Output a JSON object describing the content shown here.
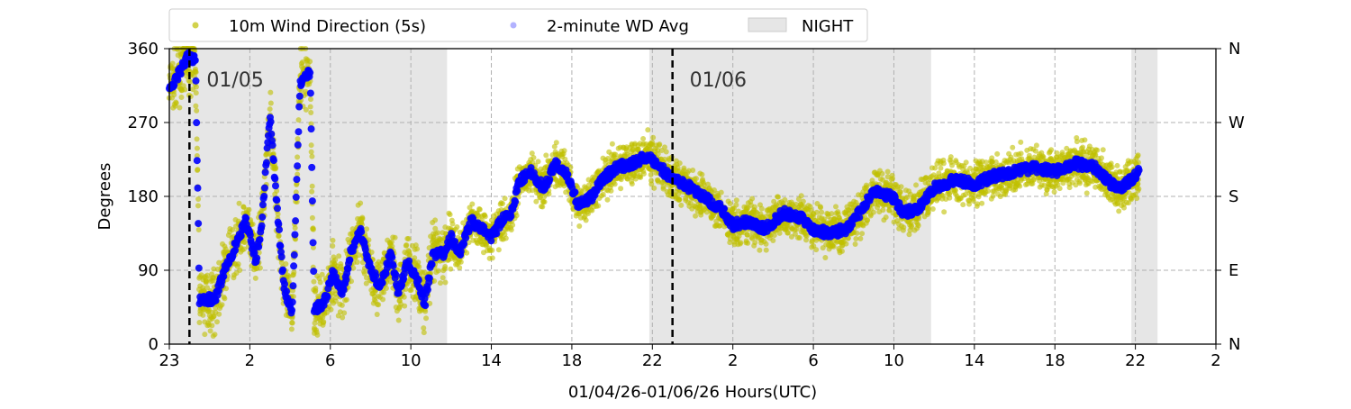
{
  "chart_data": {
    "type": "scatter",
    "xlabel": "01/04/26-01/06/26  Hours(UTC)",
    "ylabel": "Degrees",
    "x_unit": "hours since first tick",
    "xlim": [
      0,
      52
    ],
    "ylim": [
      0,
      360
    ],
    "x_ticks": [
      {
        "h": 0,
        "label": "23"
      },
      {
        "h": 4,
        "label": "2"
      },
      {
        "h": 8,
        "label": "6"
      },
      {
        "h": 12,
        "label": "10"
      },
      {
        "h": 16,
        "label": "14"
      },
      {
        "h": 20,
        "label": "18"
      },
      {
        "h": 24,
        "label": "22"
      },
      {
        "h": 28,
        "label": "2"
      },
      {
        "h": 32,
        "label": "6"
      },
      {
        "h": 36,
        "label": "10"
      },
      {
        "h": 40,
        "label": "14"
      },
      {
        "h": 44,
        "label": "18"
      },
      {
        "h": 48,
        "label": "22"
      },
      {
        "h": 52,
        "label": "2"
      }
    ],
    "y_ticks": [
      {
        "v": 0,
        "label": "0"
      },
      {
        "v": 90,
        "label": "90"
      },
      {
        "v": 180,
        "label": "180"
      },
      {
        "v": 270,
        "label": "270"
      },
      {
        "v": 360,
        "label": "360"
      }
    ],
    "y2_ticks": [
      {
        "v": 0,
        "label": "N"
      },
      {
        "v": 90,
        "label": "E"
      },
      {
        "v": 180,
        "label": "S"
      },
      {
        "v": 270,
        "label": "W"
      },
      {
        "v": 360,
        "label": "N"
      }
    ],
    "grid": true,
    "legend_position": "top-center",
    "legend": [
      {
        "label": "10m Wind Direction (5s)",
        "color": "#bfbf00"
      },
      {
        "label": "2-minute WD Avg",
        "color": "#0000ff"
      },
      {
        "label": "NIGHT",
        "color": "#e6e6e6"
      }
    ],
    "night_periods": [
      [
        0,
        13.8
      ],
      [
        23.85,
        37.85
      ],
      [
        47.8,
        49.1
      ]
    ],
    "day_markers": [
      {
        "h": 1,
        "label": "01/05"
      },
      {
        "h": 25,
        "label": "01/06"
      }
    ],
    "series": [
      {
        "name": "2-minute WD Avg",
        "color": "#0000ff",
        "points": [
          [
            0,
            310
          ],
          [
            0.5,
            330
          ],
          [
            0.9,
            350
          ],
          [
            1.3,
            345
          ],
          [
            1.5,
            55
          ],
          [
            2.3,
            55
          ],
          [
            2.8,
            95
          ],
          [
            3.3,
            120
          ],
          [
            3.8,
            150
          ],
          [
            4.3,
            100
          ],
          [
            4.6,
            150
          ],
          [
            5,
            280
          ],
          [
            5.4,
            150
          ],
          [
            5.7,
            70
          ],
          [
            6.1,
            35
          ],
          [
            6.5,
            320
          ],
          [
            7,
            330
          ],
          [
            7.2,
            40
          ],
          [
            7.8,
            55
          ],
          [
            8.1,
            90
          ],
          [
            8.6,
            60
          ],
          [
            9,
            110
          ],
          [
            9.5,
            140
          ],
          [
            10,
            90
          ],
          [
            10.5,
            70
          ],
          [
            11,
            110
          ],
          [
            11.4,
            60
          ],
          [
            11.8,
            100
          ],
          [
            12.3,
            80
          ],
          [
            12.7,
            50
          ],
          [
            13.1,
            110
          ],
          [
            13.6,
            110
          ],
          [
            14,
            130
          ],
          [
            14.4,
            110
          ],
          [
            15,
            150
          ],
          [
            15.5,
            140
          ],
          [
            16,
            130
          ],
          [
            16.5,
            150
          ],
          [
            17,
            160
          ],
          [
            17.4,
            200
          ],
          [
            18,
            210
          ],
          [
            18.6,
            190
          ],
          [
            19.2,
            220
          ],
          [
            19.8,
            205
          ],
          [
            20.3,
            170
          ],
          [
            21,
            180
          ],
          [
            21.5,
            200
          ],
          [
            22.2,
            215
          ],
          [
            23,
            220
          ],
          [
            23.8,
            230
          ],
          [
            24.4,
            215
          ],
          [
            24.8,
            205
          ],
          [
            25.6,
            195
          ],
          [
            26.5,
            180
          ],
          [
            27.4,
            165
          ],
          [
            28,
            145
          ],
          [
            28.8,
            150
          ],
          [
            29.6,
            140
          ],
          [
            30.5,
            160
          ],
          [
            31.3,
            155
          ],
          [
            32,
            140
          ],
          [
            32.8,
            135
          ],
          [
            33.6,
            140
          ],
          [
            34.3,
            160
          ],
          [
            35,
            185
          ],
          [
            35.9,
            180
          ],
          [
            36.5,
            160
          ],
          [
            37.2,
            165
          ],
          [
            38,
            190
          ],
          [
            39,
            200
          ],
          [
            40,
            195
          ],
          [
            41,
            205
          ],
          [
            42,
            210
          ],
          [
            43,
            215
          ],
          [
            44,
            210
          ],
          [
            45,
            220
          ],
          [
            46,
            215
          ],
          [
            46.8,
            195
          ],
          [
            47.3,
            190
          ],
          [
            47.8,
            200
          ],
          [
            48.2,
            210
          ]
        ]
      },
      {
        "name": "10m Wind Direction (5s)",
        "color": "#bfbf00",
        "spread_deg": 25
      }
    ]
  }
}
